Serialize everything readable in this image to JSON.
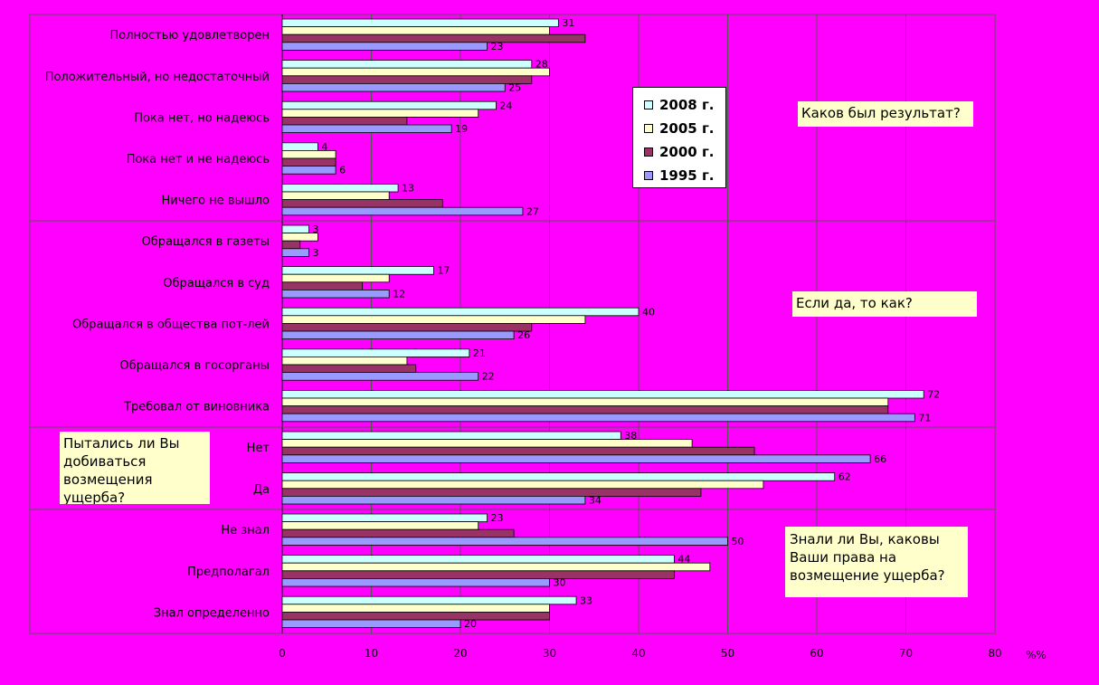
{
  "chart_data": {
    "type": "bar",
    "orientation": "horizontal",
    "xlabel": "%%",
    "xlim": [
      0,
      80
    ],
    "xticks": [
      "0",
      "10",
      "20",
      "30",
      "40",
      "50",
      "60",
      "70",
      "80"
    ],
    "grid": true,
    "legend_position": "center-right",
    "groups": [
      {
        "question": "Каков был результат?",
        "categories": [
          {
            "label": "Полностью удовлетворен",
            "values": [
              31,
              30,
              34,
              23
            ]
          },
          {
            "label": "Положительный, но недостаточный",
            "values": [
              28,
              30,
              28,
              25
            ]
          },
          {
            "label": "Пока нет, но надеюсь",
            "values": [
              24,
              22,
              14,
              19
            ]
          },
          {
            "label": "Пока нет и не надеюсь",
            "values": [
              4,
              6,
              6,
              6
            ]
          },
          {
            "label": "Ничего не вышло",
            "values": [
              13,
              12,
              18,
              27
            ]
          }
        ]
      },
      {
        "question": "Если да, то как?",
        "categories": [
          {
            "label": "Обращался в газеты",
            "values": [
              3,
              4,
              2,
              3
            ]
          },
          {
            "label": "Обращался в суд",
            "values": [
              17,
              12,
              9,
              12
            ]
          },
          {
            "label": "Обращался в общества пот-лей",
            "values": [
              40,
              34,
              28,
              26
            ]
          },
          {
            "label": "Обращался в госорганы",
            "values": [
              21,
              14,
              15,
              22
            ]
          },
          {
            "label": "Требовал от виновника",
            "values": [
              72,
              68,
              68,
              71
            ]
          }
        ]
      },
      {
        "question": "Пытались ли Вы добиваться возмещения ущерба?",
        "categories": [
          {
            "label": "Нет",
            "values": [
              38,
              46,
              53,
              66
            ]
          },
          {
            "label": "Да",
            "values": [
              62,
              54,
              47,
              34
            ]
          }
        ]
      },
      {
        "question": "Знали ли Вы, каковы Ваши права на возмещение ущерба?",
        "categories": [
          {
            "label": "Не знал",
            "values": [
              23,
              22,
              26,
              50
            ]
          },
          {
            "label": "Предполагал",
            "values": [
              44,
              48,
              44,
              30
            ]
          },
          {
            "label": "Знал определенно",
            "values": [
              33,
              30,
              30,
              20
            ]
          }
        ]
      }
    ],
    "series": [
      {
        "name": "2008 г.",
        "color": "#ccffff",
        "labeled": true
      },
      {
        "name": "2005 г.",
        "color": "#ffffcc",
        "labeled": false
      },
      {
        "name": "2000 г.",
        "color": "#993366",
        "labeled": false
      },
      {
        "name": "1995 г.",
        "color": "#9999ff",
        "labeled": true
      }
    ]
  },
  "notes": {
    "result_question": "Каков был результат?",
    "how_question": "Если да, то как?",
    "attempt_question": "Пытались ли Вы добиваться возмещения ущерба?",
    "rights_question": "Знали ли Вы, каковы Ваши права на возмещение ущерба?"
  },
  "legend": [
    {
      "label": "2008 г.",
      "color": "#ccffff"
    },
    {
      "label": "2005 г.",
      "color": "#ffffcc"
    },
    {
      "label": "2000 г.",
      "color": "#993366"
    },
    {
      "label": "1995 г.",
      "color": "#9999ff"
    }
  ],
  "colors": {
    "background": "#ff00ff",
    "note_background": "#ffffcc"
  }
}
